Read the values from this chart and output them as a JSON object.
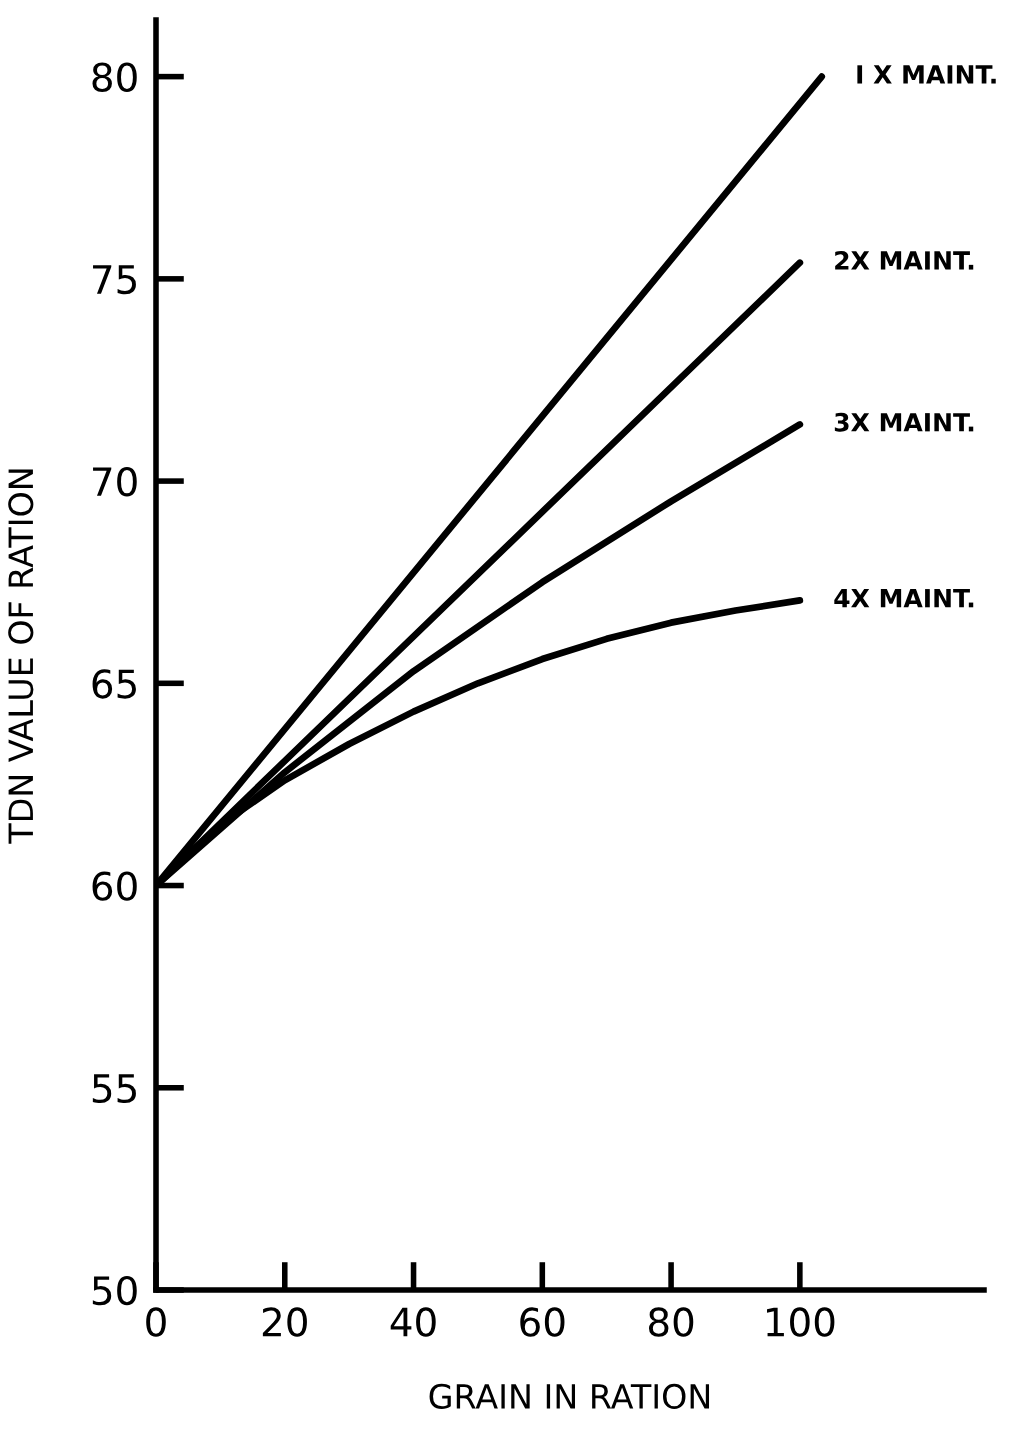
{
  "chart_data": {
    "type": "line",
    "xlabel": "GRAIN IN RATION",
    "ylabel": "TDN VALUE OF RATION",
    "xlim": [
      0,
      128.6
    ],
    "ylim": [
      50,
      81.4
    ],
    "xticks": [
      0,
      20,
      40,
      60,
      80,
      100
    ],
    "yticks": [
      50,
      55,
      60,
      65,
      70,
      75,
      80
    ],
    "grid": false,
    "legend": false,
    "marker": "none",
    "line_style": "solid",
    "series": [
      {
        "name": "I X MAINT.",
        "color": "#000000",
        "x": [
          0,
          103.4
        ],
        "values": [
          60,
          80
        ]
      },
      {
        "name": "2X MAINT.",
        "color": "#000000",
        "x": [
          0,
          100
        ],
        "values": [
          60,
          75.4
        ]
      },
      {
        "name": "3X MAINT.",
        "color": "#000000",
        "x": [
          0,
          20,
          40,
          60,
          80,
          100
        ],
        "values": [
          60,
          62.8,
          65.3,
          67.5,
          69.5,
          71.4
        ]
      },
      {
        "name": "4X MAINT.",
        "color": "#000000",
        "x": [
          0,
          10,
          20,
          30,
          40,
          50,
          60,
          70,
          80,
          90,
          100
        ],
        "values": [
          60,
          61.5,
          62.6,
          63.5,
          64.3,
          65.0,
          65.6,
          66.1,
          66.5,
          66.8,
          67.05
        ]
      }
    ]
  }
}
